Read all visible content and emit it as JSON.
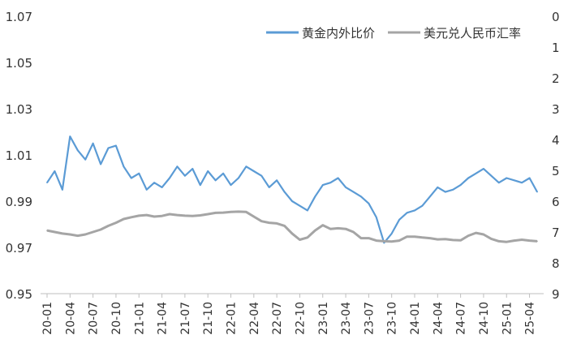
{
  "chart_data": {
    "type": "line",
    "title": "",
    "legend": {
      "placement": "top-right",
      "entries": [
        "黄金内外比价",
        "美元兑人民币汇率"
      ]
    },
    "y_left": {
      "ylim": [
        0.95,
        1.07
      ],
      "ticks": [
        "1.07",
        "1.05",
        "1.03",
        "1.01",
        "0.99",
        "0.97",
        "0.95"
      ],
      "tick_values": [
        1.07,
        1.05,
        1.03,
        1.01,
        0.99,
        0.97,
        0.95
      ]
    },
    "y_right": {
      "ylim": [
        0,
        9
      ],
      "inverted": true,
      "ticks": [
        "0",
        "1",
        "2",
        "3",
        "4",
        "5",
        "6",
        "7",
        "8",
        "9"
      ],
      "tick_values": [
        0,
        1,
        2,
        3,
        4,
        5,
        6,
        7,
        8,
        9
      ]
    },
    "x_ticks": [
      "20-01",
      "20-04",
      "20-07",
      "20-10",
      "21-01",
      "21-04",
      "21-07",
      "21-10",
      "22-01",
      "22-04",
      "22-07",
      "22-10",
      "23-01",
      "23-04",
      "23-07",
      "23-10",
      "24-01",
      "24-04",
      "24-07",
      "24-10",
      "25-01",
      "25-04"
    ],
    "series": [
      {
        "name": "黄金内外比价",
        "axis": "left",
        "color": "#5B9BD5",
        "x": [
          "20-01",
          "20-02",
          "20-03",
          "20-04",
          "20-05",
          "20-06",
          "20-07",
          "20-08",
          "20-09",
          "20-10",
          "20-11",
          "20-12",
          "21-01",
          "21-02",
          "21-03",
          "21-04",
          "21-05",
          "21-06",
          "21-07",
          "21-08",
          "21-09",
          "21-10",
          "21-11",
          "21-12",
          "22-01",
          "22-02",
          "22-03",
          "22-04",
          "22-05",
          "22-06",
          "22-07",
          "22-08",
          "22-09",
          "22-10",
          "22-11",
          "22-12",
          "23-01",
          "23-02",
          "23-03",
          "23-04",
          "23-05",
          "23-06",
          "23-07",
          "23-08",
          "23-09",
          "23-10",
          "23-11",
          "23-12",
          "24-01",
          "24-02",
          "24-03",
          "24-04",
          "24-05",
          "24-06",
          "24-07",
          "24-08",
          "24-09",
          "24-10",
          "24-11",
          "24-12",
          "25-01",
          "25-02",
          "25-03",
          "25-04",
          "25-05"
        ],
        "values": [
          0.998,
          1.003,
          0.995,
          1.018,
          1.012,
          1.008,
          1.015,
          1.006,
          1.013,
          1.014,
          1.005,
          1.0,
          1.002,
          0.995,
          0.998,
          0.996,
          1.0,
          1.005,
          1.001,
          1.004,
          0.997,
          1.003,
          0.999,
          1.002,
          0.997,
          1.0,
          1.005,
          1.003,
          1.001,
          0.996,
          0.999,
          0.994,
          0.99,
          0.988,
          0.986,
          0.992,
          0.997,
          0.998,
          1.0,
          0.996,
          0.994,
          0.992,
          0.989,
          0.983,
          0.972,
          0.976,
          0.982,
          0.985,
          0.986,
          0.988,
          0.992,
          0.996,
          0.994,
          0.995,
          0.997,
          1.0,
          1.002,
          1.004,
          1.001,
          0.998,
          1.0,
          0.999,
          0.998,
          1.0,
          0.994
        ]
      },
      {
        "name": "美元兑人民币汇率",
        "axis": "right",
        "color": "#A5A5A5",
        "x": [
          "20-01",
          "20-02",
          "20-03",
          "20-04",
          "20-05",
          "20-06",
          "20-07",
          "20-08",
          "20-09",
          "20-10",
          "20-11",
          "20-12",
          "21-01",
          "21-02",
          "21-03",
          "21-04",
          "21-05",
          "21-06",
          "21-07",
          "21-08",
          "21-09",
          "21-10",
          "21-11",
          "21-12",
          "22-01",
          "22-02",
          "22-03",
          "22-04",
          "22-05",
          "22-06",
          "22-07",
          "22-08",
          "22-09",
          "22-10",
          "22-11",
          "22-12",
          "23-01",
          "23-02",
          "23-03",
          "23-04",
          "23-05",
          "23-06",
          "23-07",
          "23-08",
          "23-09",
          "23-10",
          "23-11",
          "23-12",
          "24-01",
          "24-02",
          "24-03",
          "24-04",
          "24-05",
          "24-06",
          "24-07",
          "24-08",
          "24-09",
          "24-10",
          "24-11",
          "24-12",
          "25-01",
          "25-02",
          "25-03",
          "25-04",
          "25-05"
        ],
        "values": [
          6.95,
          7.0,
          7.05,
          7.08,
          7.12,
          7.08,
          7.0,
          6.92,
          6.8,
          6.7,
          6.58,
          6.52,
          6.47,
          6.45,
          6.5,
          6.48,
          6.42,
          6.45,
          6.47,
          6.48,
          6.46,
          6.42,
          6.38,
          6.37,
          6.35,
          6.34,
          6.35,
          6.5,
          6.65,
          6.7,
          6.72,
          6.8,
          7.05,
          7.25,
          7.18,
          6.95,
          6.78,
          6.9,
          6.88,
          6.9,
          7.0,
          7.2,
          7.2,
          7.28,
          7.3,
          7.31,
          7.28,
          7.15,
          7.15,
          7.18,
          7.2,
          7.24,
          7.23,
          7.26,
          7.27,
          7.12,
          7.03,
          7.08,
          7.22,
          7.3,
          7.32,
          7.28,
          7.25,
          7.28,
          7.3
        ]
      }
    ]
  }
}
